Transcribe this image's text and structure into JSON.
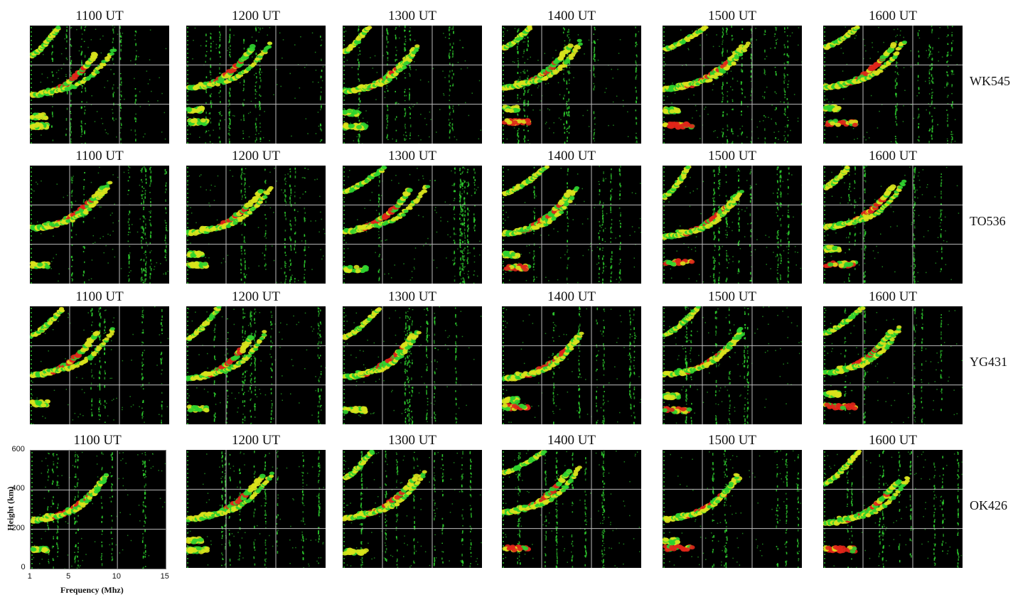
{
  "chart_data": {
    "type": "scatter",
    "description_axis": {
      "xlabel": "Frequency (Mhz)",
      "ylabel": "Height (km)",
      "xticks": [
        "1",
        "5",
        "10",
        "15"
      ],
      "yticks": [
        "0",
        "200",
        "400",
        "600"
      ],
      "xlim": [
        1,
        15
      ],
      "ylim": [
        0,
        600
      ]
    },
    "times": [
      "1100 UT",
      "1200 UT",
      "1300 UT",
      "1400 UT",
      "1500 UT",
      "1600 UT"
    ],
    "stations": [
      "WK545",
      "TO536",
      "YG431",
      "OK426"
    ],
    "colors": {
      "background": "#000000",
      "weak": "#2fd12f",
      "mid": "#d9e21c",
      "strong": "#e0261a",
      "grid": "#bdbdbd"
    }
  }
}
